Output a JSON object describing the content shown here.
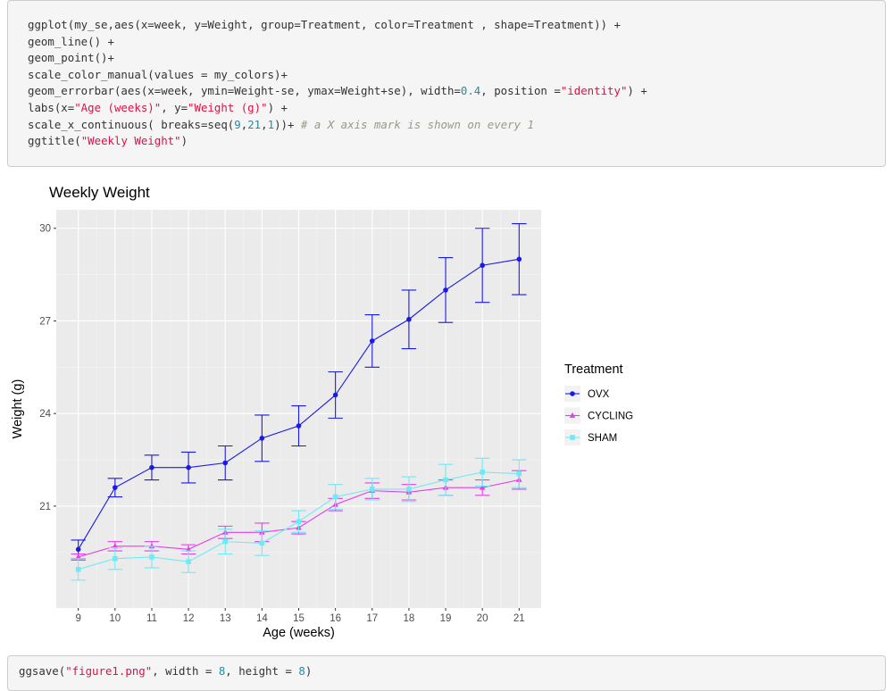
{
  "code_top": {
    "lines": [
      [
        {
          "t": "ggplot(my_se,aes(x=week, y=Weight, group=Treatment, color=Treatment , shape=Treatment)) +"
        }
      ],
      [
        {
          "t": "geom_line() +"
        }
      ],
      [
        {
          "t": "geom_point()+"
        }
      ],
      [
        {
          "t": "scale_color_manual(values = my_colors)+"
        }
      ],
      [
        {
          "t": "geom_errorbar(aes(x=week, ymin=Weight-se, ymax=Weight+se), width="
        },
        {
          "t": "0.4",
          "c": "num"
        },
        {
          "t": ", position ="
        },
        {
          "t": "\"identity\"",
          "c": "str"
        },
        {
          "t": ") +"
        }
      ],
      [
        {
          "t": "labs(x="
        },
        {
          "t": "\"Age (weeks)\"",
          "c": "str"
        },
        {
          "t": ", y="
        },
        {
          "t": "\"Weight (g)\"",
          "c": "str"
        },
        {
          "t": ") +"
        }
      ],
      [
        {
          "t": "scale_x_continuous( breaks=seq("
        },
        {
          "t": "9",
          "c": "num"
        },
        {
          "t": ","
        },
        {
          "t": "21",
          "c": "num"
        },
        {
          "t": ","
        },
        {
          "t": "1",
          "c": "num"
        },
        {
          "t": "))+ "
        },
        {
          "t": "# a X axis mark is shown on every 1",
          "c": "com"
        }
      ],
      [
        {
          "t": "ggtitle("
        },
        {
          "t": "\"Weekly Weight\"",
          "c": "str"
        },
        {
          "t": ")"
        }
      ]
    ]
  },
  "code_bottom": {
    "lines": [
      [
        {
          "t": "ggsave("
        },
        {
          "t": "\"figure1.png\"",
          "c": "str"
        },
        {
          "t": ", width = "
        },
        {
          "t": "8",
          "c": "num"
        },
        {
          "t": ", height = "
        },
        {
          "t": "8",
          "c": "num"
        },
        {
          "t": ")"
        }
      ]
    ]
  },
  "chart_data": {
    "type": "line",
    "title": "Weekly Weight",
    "xlabel": "Age (weeks)",
    "ylabel": "Weight (g)",
    "xlim": [
      8.4,
      21.6
    ],
    "ylim": [
      17.7,
      30.6
    ],
    "x_ticks": [
      9,
      10,
      11,
      12,
      13,
      14,
      15,
      16,
      17,
      18,
      19,
      20,
      21
    ],
    "y_ticks": [
      21,
      24,
      27,
      30
    ],
    "grid": true,
    "legend": {
      "title": "Treatment",
      "position": "right"
    },
    "background": "#ebebeb",
    "series": [
      {
        "name": "OVX",
        "color": "#1a1ae6",
        "shape": "circle",
        "x": [
          9,
          10,
          11,
          12,
          13,
          14,
          15,
          16,
          17,
          18,
          19,
          20,
          21
        ],
        "y": [
          19.6,
          21.6,
          22.25,
          22.25,
          22.4,
          23.2,
          23.6,
          24.6,
          26.35,
          27.05,
          28.0,
          28.8,
          29.0
        ],
        "se": [
          0.3,
          0.3,
          0.4,
          0.5,
          0.55,
          0.75,
          0.65,
          0.75,
          0.85,
          0.95,
          1.05,
          1.2,
          1.15
        ]
      },
      {
        "name": "CYCLING",
        "color": "#e33fe8",
        "shape": "triangle",
        "x": [
          9,
          10,
          11,
          12,
          13,
          14,
          15,
          16,
          17,
          18,
          19,
          20,
          21
        ],
        "y": [
          19.35,
          19.7,
          19.7,
          19.6,
          20.15,
          20.15,
          20.3,
          21.05,
          21.5,
          21.45,
          21.6,
          21.6,
          21.85
        ],
        "se": [
          0.1,
          0.15,
          0.15,
          0.15,
          0.2,
          0.3,
          0.2,
          0.2,
          0.25,
          0.25,
          0.25,
          0.25,
          0.3
        ]
      },
      {
        "name": "SHAM",
        "color": "#6fe9f3",
        "shape": "square",
        "x": [
          9,
          10,
          11,
          12,
          13,
          14,
          15,
          16,
          17,
          18,
          19,
          20,
          21
        ],
        "y": [
          18.95,
          19.3,
          19.35,
          19.2,
          19.85,
          19.8,
          20.5,
          21.3,
          21.55,
          21.55,
          21.85,
          22.1,
          22.05
        ],
        "se": [
          0.35,
          0.35,
          0.35,
          0.35,
          0.4,
          0.4,
          0.35,
          0.4,
          0.35,
          0.4,
          0.5,
          0.45,
          0.45
        ]
      }
    ]
  }
}
